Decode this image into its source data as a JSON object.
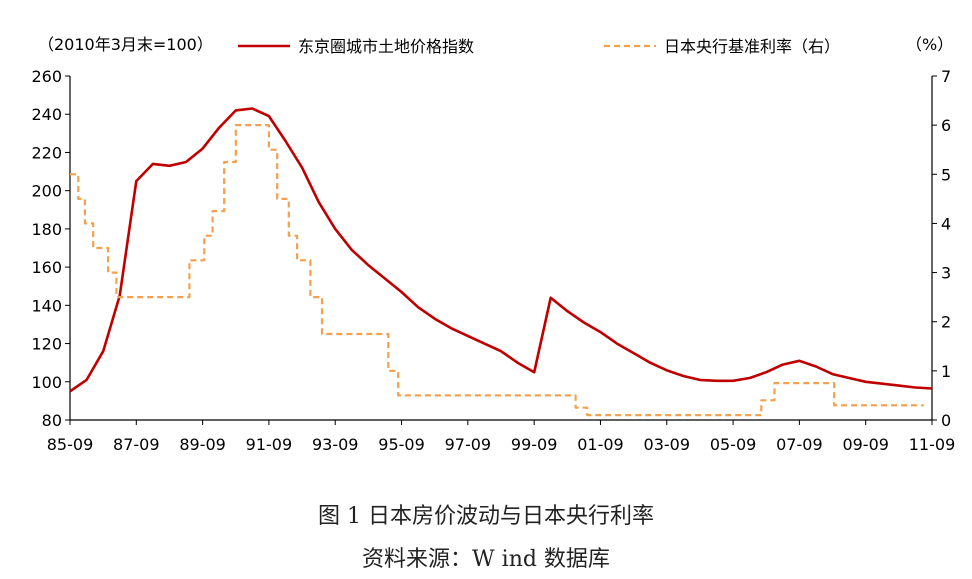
{
  "chart_data": {
    "type": "line",
    "left_unit": "（2010年3月末=100）",
    "right_unit": "（%）",
    "x_ticks": [
      "85-09",
      "87-09",
      "89-09",
      "91-09",
      "93-09",
      "95-09",
      "97-09",
      "99-09",
      "01-09",
      "03-09",
      "05-09",
      "07-09",
      "09-09",
      "11-09"
    ],
    "y_left": {
      "min": 80,
      "max": 260,
      "ticks": [
        "80",
        "100",
        "120",
        "140",
        "160",
        "180",
        "200",
        "220",
        "240",
        "260"
      ]
    },
    "y_right": {
      "min": 0,
      "max": 7,
      "ticks": [
        "0",
        "1",
        "2",
        "3",
        "4",
        "5",
        "6",
        "7"
      ]
    },
    "series": [
      {
        "name": "东京圈城市土地价格指数",
        "axis": "left",
        "color": "#c00000",
        "style": "solid",
        "points": [
          [
            1985.75,
            95
          ],
          [
            1986.25,
            101
          ],
          [
            1986.75,
            116
          ],
          [
            1987.25,
            145
          ],
          [
            1987.75,
            205
          ],
          [
            1988.25,
            214
          ],
          [
            1988.75,
            213
          ],
          [
            1989.25,
            215
          ],
          [
            1989.75,
            222
          ],
          [
            1990.25,
            233
          ],
          [
            1990.75,
            242
          ],
          [
            1991.25,
            243
          ],
          [
            1991.75,
            239
          ],
          [
            1992.25,
            226
          ],
          [
            1992.75,
            212
          ],
          [
            1993.25,
            194
          ],
          [
            1993.75,
            180
          ],
          [
            1994.25,
            169
          ],
          [
            1994.75,
            161
          ],
          [
            1995.25,
            154
          ],
          [
            1995.75,
            147
          ],
          [
            1996.25,
            139
          ],
          [
            1996.75,
            133
          ],
          [
            1997.25,
            128
          ],
          [
            1997.75,
            124
          ],
          [
            1998.25,
            120
          ],
          [
            1998.75,
            116
          ],
          [
            1999.25,
            110
          ],
          [
            1999.75,
            105
          ],
          [
            2000.25,
            144
          ],
          [
            2000.75,
            137
          ],
          [
            2001.25,
            131
          ],
          [
            2001.75,
            126
          ],
          [
            2002.25,
            120
          ],
          [
            2002.75,
            115
          ],
          [
            2003.25,
            110
          ],
          [
            2003.75,
            106
          ],
          [
            2004.25,
            103
          ],
          [
            2004.75,
            101
          ],
          [
            2005.25,
            100.5
          ],
          [
            2005.75,
            100.5
          ],
          [
            2006.25,
            102
          ],
          [
            2006.75,
            105
          ],
          [
            2007.25,
            109
          ],
          [
            2007.75,
            111
          ],
          [
            2008.25,
            108
          ],
          [
            2008.75,
            104
          ],
          [
            2009.25,
            102
          ],
          [
            2009.75,
            100
          ],
          [
            2010.25,
            99
          ],
          [
            2010.75,
            98
          ],
          [
            2011.25,
            97
          ],
          [
            2011.75,
            96.5
          ]
        ]
      },
      {
        "name": "日本央行基准利率（右）",
        "axis": "right",
        "color": "#f4a04f",
        "style": "dashed",
        "points": [
          [
            1985.75,
            5.0
          ],
          [
            1986.0,
            5.0
          ],
          [
            1986.0,
            4.5
          ],
          [
            1986.2,
            4.5
          ],
          [
            1986.2,
            4.0
          ],
          [
            1986.45,
            4.0
          ],
          [
            1986.45,
            3.5
          ],
          [
            1986.9,
            3.5
          ],
          [
            1986.9,
            3.0
          ],
          [
            1987.15,
            3.0
          ],
          [
            1987.15,
            2.5
          ],
          [
            1989.35,
            2.5
          ],
          [
            1989.35,
            3.25
          ],
          [
            1989.8,
            3.25
          ],
          [
            1989.8,
            3.75
          ],
          [
            1990.05,
            3.75
          ],
          [
            1990.05,
            4.25
          ],
          [
            1990.4,
            4.25
          ],
          [
            1990.4,
            5.25
          ],
          [
            1990.75,
            5.25
          ],
          [
            1990.75,
            6.0
          ],
          [
            1991.75,
            6.0
          ],
          [
            1991.75,
            5.5
          ],
          [
            1992.0,
            5.5
          ],
          [
            1992.0,
            4.5
          ],
          [
            1992.35,
            4.5
          ],
          [
            1992.35,
            3.75
          ],
          [
            1992.6,
            3.75
          ],
          [
            1992.6,
            3.25
          ],
          [
            1993.0,
            3.25
          ],
          [
            1993.0,
            2.5
          ],
          [
            1993.35,
            2.5
          ],
          [
            1993.35,
            1.75
          ],
          [
            1995.35,
            1.75
          ],
          [
            1995.35,
            1.0
          ],
          [
            1995.65,
            1.0
          ],
          [
            1995.65,
            0.5
          ],
          [
            2001.0,
            0.5
          ],
          [
            2001.0,
            0.25
          ],
          [
            2001.35,
            0.25
          ],
          [
            2001.35,
            0.1
          ],
          [
            2006.6,
            0.1
          ],
          [
            2006.6,
            0.4
          ],
          [
            2007.0,
            0.4
          ],
          [
            2007.0,
            0.75
          ],
          [
            2008.8,
            0.75
          ],
          [
            2008.8,
            0.3
          ],
          [
            2011.5,
            0.3
          ]
        ]
      }
    ],
    "grid": false,
    "legend_placement": "top"
  },
  "caption": {
    "title": "图 1 日本房价波动与日本央行利率",
    "source": "资料来源：W ind 数据库"
  }
}
